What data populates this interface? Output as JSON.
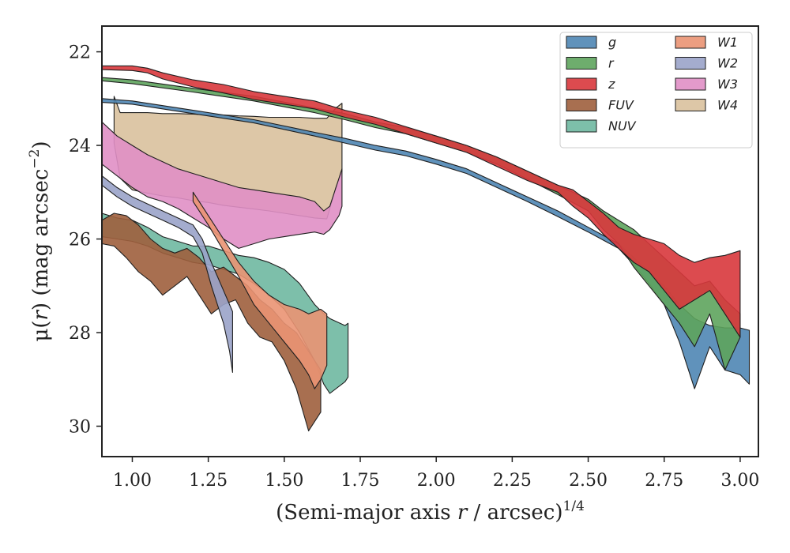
{
  "chart_data": {
    "type": "area",
    "xlabel": "(Semi-major axis r / arcsec)1/4",
    "xlabel_parts": {
      "pre": "(Semi-major axis ",
      "var": "r",
      "mid": " / arcsec)",
      "sup": "1/4"
    },
    "ylabel": "μ(r) (mag arcsec−2)",
    "ylabel_parts": {
      "sym": "μ(",
      "var": "r",
      "mid": ") (mag arcsec",
      "sup": "−2",
      "post": ")"
    },
    "xlim": [
      0.9,
      3.06
    ],
    "ylim": [
      30.65,
      21.45
    ],
    "y_inverted": true,
    "xticks": [
      1.0,
      1.25,
      1.5,
      1.75,
      2.0,
      2.25,
      2.5,
      2.75,
      3.0
    ],
    "xtick_labels": [
      "1.00",
      "1.25",
      "1.50",
      "1.75",
      "2.00",
      "2.25",
      "2.50",
      "2.75",
      "3.00"
    ],
    "yticks": [
      22,
      24,
      26,
      28,
      30
    ],
    "ytick_labels": [
      "22",
      "24",
      "26",
      "28",
      "30"
    ],
    "grid": false,
    "legend_position": "top-right",
    "legend_columns": 2,
    "series": [
      {
        "name": "W4",
        "color": "#d9c19d",
        "x": [
          0.94,
          0.96,
          1.0,
          1.05,
          1.1,
          1.15,
          1.2,
          1.25,
          1.3,
          1.35,
          1.4,
          1.45,
          1.5,
          1.55,
          1.6,
          1.64,
          1.67,
          1.69
        ],
        "y_upper": [
          22.95,
          23.3,
          23.3,
          23.3,
          23.32,
          23.32,
          23.33,
          23.35,
          23.35,
          23.37,
          23.38,
          23.4,
          23.4,
          23.4,
          23.42,
          23.42,
          23.2,
          23.1
        ],
        "y_lower": [
          23.95,
          24.7,
          24.95,
          25.02,
          25.08,
          25.12,
          25.18,
          25.22,
          25.28,
          25.32,
          25.36,
          25.4,
          25.45,
          25.5,
          25.55,
          25.57,
          24.9,
          24.55
        ]
      },
      {
        "name": "W3",
        "color": "#e08fc5",
        "x": [
          0.9,
          0.95,
          1.0,
          1.05,
          1.1,
          1.15,
          1.2,
          1.25,
          1.3,
          1.35,
          1.4,
          1.45,
          1.5,
          1.55,
          1.6,
          1.63,
          1.65,
          1.68,
          1.69
        ],
        "y_upper": [
          23.5,
          23.8,
          24.0,
          24.2,
          24.35,
          24.5,
          24.6,
          24.7,
          24.8,
          24.9,
          24.95,
          25.0,
          25.05,
          25.1,
          25.2,
          25.4,
          25.3,
          24.7,
          24.5
        ],
        "y_lower": [
          24.4,
          24.65,
          24.9,
          25.1,
          25.2,
          25.35,
          25.55,
          25.75,
          26.0,
          26.2,
          26.1,
          26.0,
          25.95,
          25.9,
          25.85,
          25.9,
          25.8,
          25.5,
          25.3
        ]
      },
      {
        "name": "NUV",
        "color": "#6fb8a1",
        "x": [
          0.9,
          0.95,
          1.0,
          1.05,
          1.1,
          1.15,
          1.2,
          1.25,
          1.3,
          1.35,
          1.4,
          1.45,
          1.5,
          1.55,
          1.6,
          1.63,
          1.65,
          1.7,
          1.71
        ],
        "y_upper": [
          25.45,
          25.55,
          25.6,
          25.75,
          25.95,
          26.05,
          26.15,
          26.15,
          26.25,
          26.35,
          26.4,
          26.5,
          26.65,
          26.95,
          27.4,
          27.6,
          27.7,
          27.85,
          27.8
        ],
        "y_lower": [
          25.95,
          26.0,
          26.05,
          26.15,
          26.3,
          26.4,
          26.5,
          26.55,
          26.65,
          26.75,
          26.95,
          27.2,
          27.5,
          28.0,
          28.6,
          29.1,
          29.3,
          29.05,
          28.95
        ]
      },
      {
        "name": "FUV",
        "color": "#9e5f3d",
        "x": [
          0.9,
          0.94,
          0.98,
          1.02,
          1.06,
          1.1,
          1.14,
          1.18,
          1.22,
          1.26,
          1.3,
          1.34,
          1.38,
          1.42,
          1.46,
          1.5,
          1.54,
          1.58,
          1.62
        ],
        "y_upper": [
          25.6,
          25.45,
          25.5,
          25.7,
          26.0,
          26.2,
          26.3,
          26.2,
          26.4,
          26.7,
          26.6,
          26.8,
          27.0,
          27.3,
          27.5,
          27.8,
          28.0,
          28.4,
          28.8
        ],
        "y_lower": [
          26.1,
          26.15,
          26.4,
          26.7,
          26.9,
          27.2,
          27.0,
          26.8,
          27.2,
          27.6,
          27.4,
          27.3,
          27.8,
          28.1,
          28.2,
          28.6,
          29.2,
          30.1,
          29.7
        ]
      },
      {
        "name": "W2",
        "color": "#9aa3c9",
        "x": [
          0.9,
          0.95,
          1.0,
          1.05,
          1.1,
          1.15,
          1.2,
          1.23,
          1.26,
          1.28,
          1.3,
          1.32,
          1.33
        ],
        "y_upper": [
          24.65,
          24.9,
          25.1,
          25.25,
          25.4,
          25.55,
          25.7,
          26.0,
          26.5,
          26.8,
          27.1,
          27.4,
          27.55
        ],
        "y_lower": [
          24.85,
          25.1,
          25.3,
          25.45,
          25.6,
          25.75,
          25.95,
          26.3,
          27.0,
          27.4,
          27.8,
          28.4,
          28.85
        ]
      },
      {
        "name": "W1",
        "color": "#ea9473",
        "x": [
          1.2,
          1.25,
          1.3,
          1.35,
          1.4,
          1.45,
          1.5,
          1.55,
          1.58,
          1.6,
          1.62,
          1.64
        ],
        "y_upper": [
          25.0,
          25.5,
          26.0,
          26.5,
          26.9,
          27.2,
          27.4,
          27.5,
          27.6,
          27.55,
          27.5,
          27.6
        ],
        "y_lower": [
          25.2,
          25.7,
          26.25,
          26.8,
          27.4,
          27.8,
          28.2,
          28.6,
          28.9,
          29.2,
          29.0,
          28.7
        ]
      },
      {
        "name": "g",
        "color": "#4f86b4",
        "x": [
          0.9,
          1.0,
          1.2,
          1.4,
          1.6,
          1.7,
          1.8,
          1.9,
          2.0,
          2.1,
          2.2,
          2.3,
          2.4,
          2.5,
          2.6,
          2.65,
          2.7,
          2.75,
          2.8,
          2.85,
          2.9,
          2.95,
          3.0,
          3.03
        ],
        "y_upper": [
          23.0,
          23.05,
          23.25,
          23.45,
          23.72,
          23.85,
          24.0,
          24.12,
          24.3,
          24.5,
          24.8,
          25.1,
          25.4,
          25.75,
          26.1,
          26.4,
          26.7,
          27.0,
          27.4,
          27.7,
          27.85,
          27.9,
          27.9,
          27.95
        ],
        "y_lower": [
          23.08,
          23.12,
          23.32,
          23.52,
          23.8,
          23.95,
          24.1,
          24.22,
          24.4,
          24.6,
          24.9,
          25.2,
          25.52,
          25.85,
          26.2,
          26.55,
          26.95,
          27.4,
          28.2,
          29.2,
          28.3,
          28.8,
          28.9,
          29.1
        ]
      },
      {
        "name": "r",
        "color": "#5ea45d",
        "x": [
          0.9,
          1.0,
          1.2,
          1.4,
          1.6,
          1.7,
          1.8,
          1.9,
          2.0,
          2.1,
          2.2,
          2.3,
          2.4,
          2.5,
          2.55,
          2.6,
          2.65,
          2.7,
          2.75,
          2.8,
          2.85,
          2.9,
          2.95,
          3.0
        ],
        "y_upper": [
          22.55,
          22.6,
          22.78,
          22.95,
          23.2,
          23.32,
          23.5,
          23.62,
          23.8,
          24.0,
          24.25,
          24.55,
          24.85,
          25.15,
          25.4,
          25.6,
          25.8,
          26.1,
          26.4,
          26.7,
          27.0,
          26.9,
          27.3,
          27.6
        ],
        "y_lower": [
          22.62,
          22.68,
          22.86,
          23.05,
          23.3,
          23.45,
          23.62,
          23.75,
          23.95,
          24.15,
          24.4,
          24.72,
          25.05,
          25.4,
          25.8,
          26.1,
          26.6,
          27.0,
          27.4,
          27.8,
          28.3,
          27.6,
          28.8,
          28.1
        ]
      },
      {
        "name": "z",
        "color": "#d8373c",
        "x": [
          0.9,
          1.0,
          1.05,
          1.1,
          1.2,
          1.3,
          1.4,
          1.5,
          1.6,
          1.7,
          1.8,
          1.9,
          2.0,
          2.1,
          2.2,
          2.3,
          2.4,
          2.45,
          2.5,
          2.55,
          2.6,
          2.65,
          2.7,
          2.75,
          2.8,
          2.85,
          2.9,
          2.95,
          3.0
        ],
        "y_upper": [
          22.3,
          22.3,
          22.35,
          22.45,
          22.6,
          22.7,
          22.85,
          22.95,
          23.05,
          23.25,
          23.4,
          23.6,
          23.8,
          24.0,
          24.25,
          24.55,
          24.85,
          24.95,
          25.2,
          25.45,
          25.75,
          25.9,
          26.0,
          26.1,
          26.35,
          26.5,
          26.4,
          26.35,
          26.25
        ],
        "y_lower": [
          22.38,
          22.4,
          22.45,
          22.58,
          22.75,
          22.88,
          23.02,
          23.12,
          23.22,
          23.4,
          23.55,
          23.75,
          23.95,
          24.15,
          24.45,
          24.75,
          25.0,
          25.3,
          25.55,
          25.9,
          26.2,
          26.5,
          26.7,
          27.1,
          27.5,
          27.3,
          27.1,
          27.6,
          28.1
        ]
      }
    ],
    "legend": {
      "col1": [
        "g",
        "r",
        "z",
        "FUV",
        "NUV"
      ],
      "col2": [
        "W1",
        "W2",
        "W3",
        "W4"
      ]
    }
  }
}
